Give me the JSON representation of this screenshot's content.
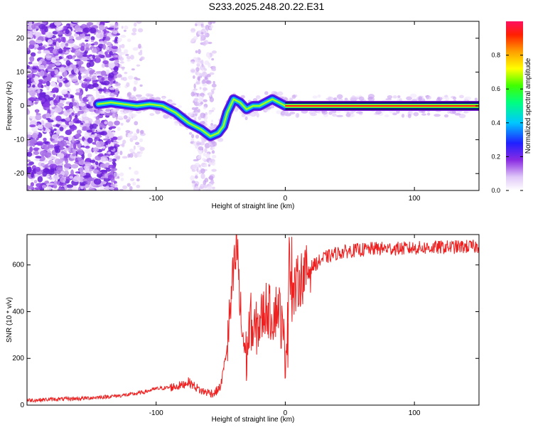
{
  "title": "S233.2025.248.20.22.E31",
  "chart_data": [
    {
      "type": "heatmap",
      "xlabel": "Height of straight line (km)",
      "ylabel": "Frequency (Hz)",
      "xlim": [
        -200,
        150
      ],
      "ylim": [
        -25,
        25
      ],
      "xticks": [
        -100,
        0,
        100
      ],
      "yticks": [
        -20,
        -10,
        0,
        10,
        20
      ],
      "colorbar": {
        "label": "Normalized spectral amplitude",
        "range": [
          0,
          1
        ],
        "ticks": [
          "0.0",
          "0.2",
          "0.4",
          "0.6",
          "0.8"
        ]
      },
      "ridge": {
        "x": [
          -145,
          -135,
          -125,
          -115,
          -105,
          -95,
          -85,
          -75,
          -65,
          -58,
          -52,
          -48,
          -45,
          -40,
          -35,
          -30,
          -25,
          -20,
          -15,
          -10,
          -5,
          0,
          10,
          20,
          40,
          60,
          80,
          100,
          120,
          150
        ],
        "y": [
          0.5,
          1,
          0.5,
          0,
          0.5,
          0,
          -2,
          -5,
          -7,
          -9,
          -8,
          -6,
          -2,
          2,
          1,
          -1,
          0,
          0,
          1,
          2,
          1,
          0,
          0,
          0,
          0,
          0,
          0,
          0,
          0,
          0
        ]
      }
    },
    {
      "type": "line",
      "xlabel": "Height of straight line (km)",
      "ylabel": "SNR (10 * v/v)",
      "xlim": [
        -200,
        150
      ],
      "ylim": [
        0,
        730
      ],
      "xticks": [
        -100,
        0,
        100
      ],
      "yticks": [
        0,
        200,
        400,
        600
      ],
      "series": [
        {
          "name": "SNR",
          "x": [
            -200,
            -180,
            -160,
            -140,
            -120,
            -110,
            -100,
            -90,
            -80,
            -75,
            -70,
            -65,
            -60,
            -55,
            -50,
            -45,
            -40,
            -37,
            -35,
            -33,
            -30,
            -27,
            -25,
            -20,
            -15,
            -10,
            -5,
            -2,
            0,
            2,
            3,
            5,
            10,
            15,
            20,
            25,
            30,
            40,
            50,
            60,
            70,
            80,
            90,
            100,
            120,
            140,
            150
          ],
          "y": [
            20,
            25,
            28,
            35,
            45,
            55,
            70,
            75,
            85,
            100,
            80,
            60,
            55,
            50,
            80,
            250,
            560,
            680,
            400,
            300,
            200,
            380,
            300,
            350,
            420,
            380,
            430,
            300,
            220,
            350,
            720,
            450,
            530,
            560,
            590,
            610,
            630,
            650,
            660,
            665,
            670,
            670,
            670,
            672,
            675,
            678,
            678
          ]
        }
      ],
      "spikes": [
        {
          "x": -37,
          "y": 680
        },
        {
          "x": 5,
          "y": 720
        },
        {
          "x": 2,
          "y": 160
        }
      ]
    }
  ]
}
